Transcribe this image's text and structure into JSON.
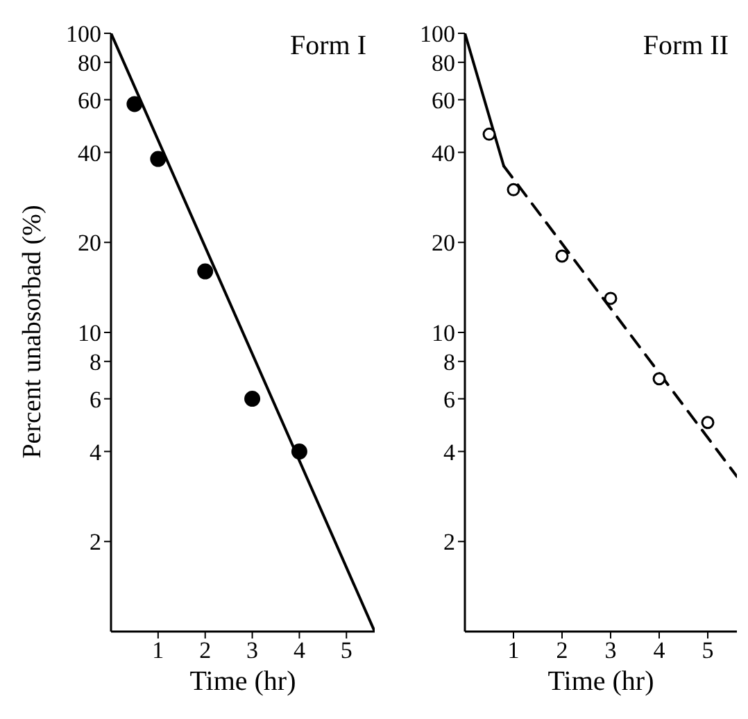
{
  "chart_data": [
    {
      "type": "scatter",
      "title": "Form I",
      "xlabel": "Time (hr)",
      "ylabel": "Percent unabsorbad (%)",
      "log": "y",
      "xlim": [
        0,
        5.6
      ],
      "xticks": [
        1,
        2,
        3,
        4,
        5
      ],
      "ylim": [
        1,
        100
      ],
      "yticks": [
        2,
        4,
        6,
        8,
        10,
        20,
        40,
        60,
        80,
        100
      ],
      "marker": "circle",
      "series": [
        {
          "color": "#000000",
          "x": [
            0.5,
            1,
            2,
            3,
            4
          ],
          "values": [
            58,
            38,
            16,
            6,
            4
          ]
        },
        {
          "type": "line",
          "color": "#000000",
          "line_style": "solid",
          "marker": "none",
          "x": [
            0,
            5.6
          ],
          "values": [
            100,
            1
          ]
        }
      ]
    },
    {
      "type": "scatter",
      "title": "Form II",
      "xlabel": "Time (hr)",
      "log": "y",
      "xlim": [
        0,
        5.6
      ],
      "xticks": [
        1,
        2,
        3,
        4,
        5
      ],
      "ylim": [
        1,
        100
      ],
      "yticks": [
        2,
        4,
        6,
        8,
        10,
        20,
        40,
        60,
        80,
        100
      ],
      "marker": "circle",
      "series": [
        {
          "color": "#000000",
          "x": [
            0.5,
            1,
            2,
            3,
            4,
            5
          ],
          "values": [
            46,
            30,
            18,
            13,
            7,
            5
          ]
        },
        {
          "type": "line",
          "color": "#000000",
          "line_style": "solid",
          "marker": "none",
          "x": [
            0,
            0.8
          ],
          "values": [
            100,
            36
          ]
        },
        {
          "type": "line",
          "color": "#000000",
          "line_style": "dashed",
          "marker": "none",
          "x": [
            0.8,
            5.6
          ],
          "values": [
            36,
            3.3
          ]
        }
      ]
    }
  ]
}
